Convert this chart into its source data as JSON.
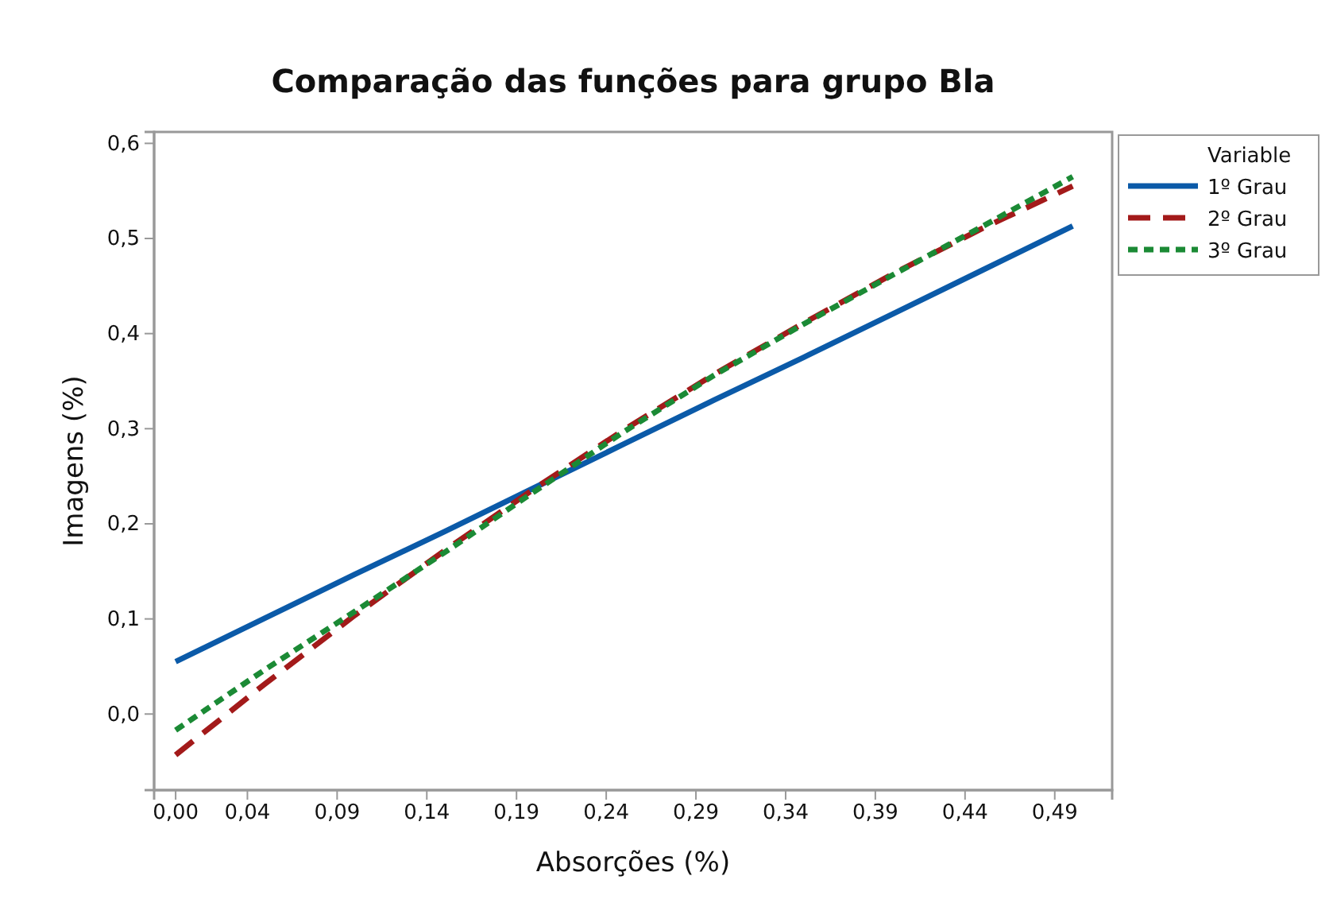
{
  "chart_data": {
    "type": "line",
    "title": "Comparação das funções para grupo Bla",
    "xlabel": "Absorções (%)",
    "ylabel": "Imagens (%)",
    "legend_title": "Variable",
    "legend": "right",
    "grid": false,
    "marker": "none",
    "x": [
      0,
      0.05,
      0.1,
      0.15,
      0.2,
      0.25,
      0.3,
      0.35,
      0.4,
      0.45,
      0.5
    ],
    "xlim": [
      -0.012,
      0.522
    ],
    "xticks": [
      {
        "value": 0,
        "label": "0,00"
      },
      {
        "value": 0.04,
        "label": "0,04"
      },
      {
        "value": 0.09,
        "label": "0,09"
      },
      {
        "value": 0.14,
        "label": "0,14"
      },
      {
        "value": 0.19,
        "label": "0,19"
      },
      {
        "value": 0.24,
        "label": "0,24"
      },
      {
        "value": 0.29,
        "label": "0,29"
      },
      {
        "value": 0.34,
        "label": "0,34"
      },
      {
        "value": 0.39,
        "label": "0,39"
      },
      {
        "value": 0.44,
        "label": "0,44"
      },
      {
        "value": 0.49,
        "label": "0,49"
      }
    ],
    "ylim": [
      -0.08,
      0.612
    ],
    "yticks": [
      {
        "value": 0,
        "label": "0,0"
      },
      {
        "value": 0.1,
        "label": "0,1"
      },
      {
        "value": 0.2,
        "label": "0,2"
      },
      {
        "value": 0.3,
        "label": "0,3"
      },
      {
        "value": 0.4,
        "label": "0,4"
      },
      {
        "value": 0.5,
        "label": "0,5"
      },
      {
        "value": 0.6,
        "label": "0,6"
      }
    ],
    "series": [
      {
        "name": "1º Grau",
        "color": "#0b5aa8",
        "line_style": "solid",
        "values": [
          0.055,
          0.101,
          0.147,
          0.192,
          0.238,
          0.284,
          0.33,
          0.375,
          0.421,
          0.467,
          0.513
        ]
      },
      {
        "name": "2º Grau",
        "color": "#a31a1a",
        "line_style": "dashed",
        "values": [
          -0.043,
          0.032,
          0.104,
          0.172,
          0.237,
          0.299,
          0.357,
          0.411,
          0.463,
          0.511,
          0.555
        ]
      },
      {
        "name": "3º Grau",
        "color": "#1b8a35",
        "line_style": "dotted",
        "values": [
          -0.017,
          0.047,
          0.108,
          0.17,
          0.234,
          0.297,
          0.356,
          0.41,
          0.462,
          0.513,
          0.565
        ]
      }
    ]
  }
}
